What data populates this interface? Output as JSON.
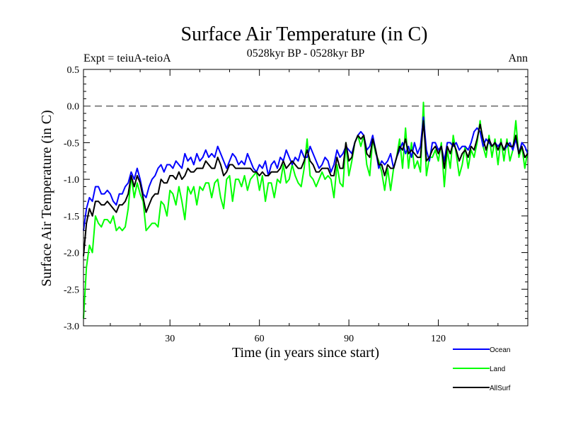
{
  "chart_data": {
    "type": "line",
    "title": "Surface Air Temperature (in C)",
    "subtitle": "0528kyr BP - 0528kyr BP",
    "left_label": "Expt = teiuA-teioA",
    "right_label": "Ann",
    "xlabel": "Time (in years since start)",
    "ylabel": "Surface Air Temperature (in C)",
    "xlim": [
      1,
      150
    ],
    "ylim": [
      -3.0,
      0.5
    ],
    "xticks": [
      30,
      60,
      90,
      120
    ],
    "yticks": [
      0.5,
      0.0,
      -0.5,
      -1.0,
      -1.5,
      -2.0,
      -2.5,
      -3.0
    ],
    "ytick_labels": [
      "0.5",
      "0.0",
      "-0.5",
      "-1.0",
      "-1.5",
      "-2.0",
      "-2.5",
      "-3.0"
    ],
    "reference_line": 0.0,
    "x": [
      1,
      2,
      3,
      4,
      5,
      6,
      7,
      8,
      9,
      10,
      11,
      12,
      13,
      14,
      15,
      16,
      17,
      18,
      19,
      20,
      21,
      22,
      23,
      24,
      25,
      26,
      27,
      28,
      29,
      30,
      31,
      32,
      33,
      34,
      35,
      36,
      37,
      38,
      39,
      40,
      41,
      42,
      43,
      44,
      45,
      46,
      47,
      48,
      49,
      50,
      51,
      52,
      53,
      54,
      55,
      56,
      57,
      58,
      59,
      60,
      61,
      62,
      63,
      64,
      65,
      66,
      67,
      68,
      69,
      70,
      71,
      72,
      73,
      74,
      75,
      76,
      77,
      78,
      79,
      80,
      81,
      82,
      83,
      84,
      85,
      86,
      87,
      88,
      89,
      90,
      91,
      92,
      93,
      94,
      95,
      96,
      97,
      98,
      99,
      100,
      101,
      102,
      103,
      104,
      105,
      106,
      107,
      108,
      109,
      110,
      111,
      112,
      113,
      114,
      115,
      116,
      117,
      118,
      119,
      120,
      121,
      122,
      123,
      124,
      125,
      126,
      127,
      128,
      129,
      130,
      131,
      132,
      133,
      134,
      135,
      136,
      137,
      138,
      139,
      140,
      141,
      142,
      143,
      144,
      145,
      146,
      147,
      148,
      149,
      150
    ],
    "series": [
      {
        "name": "Ocean",
        "color": "#0000ff",
        "values": [
          -1.7,
          -1.4,
          -1.25,
          -1.3,
          -1.1,
          -1.1,
          -1.2,
          -1.2,
          -1.15,
          -1.2,
          -1.3,
          -1.35,
          -1.2,
          -1.2,
          -1.1,
          -1.05,
          -0.9,
          -1.0,
          -0.85,
          -1.0,
          -1.2,
          -1.25,
          -1.1,
          -1.0,
          -0.95,
          -0.85,
          -0.8,
          -0.9,
          -0.8,
          -0.8,
          -0.85,
          -0.75,
          -0.8,
          -0.85,
          -0.65,
          -0.75,
          -0.7,
          -0.8,
          -0.65,
          -0.75,
          -0.7,
          -0.6,
          -0.7,
          -0.65,
          -0.7,
          -0.55,
          -0.65,
          -0.75,
          -0.85,
          -0.75,
          -0.65,
          -0.7,
          -0.8,
          -0.75,
          -0.8,
          -0.65,
          -0.75,
          -0.85,
          -0.9,
          -0.8,
          -0.85,
          -0.75,
          -0.95,
          -0.8,
          -0.75,
          -0.85,
          -0.7,
          -0.75,
          -0.6,
          -0.7,
          -0.8,
          -0.7,
          -0.75,
          -0.6,
          -0.7,
          -0.7,
          -0.55,
          -0.65,
          -0.75,
          -0.85,
          -0.8,
          -0.7,
          -0.75,
          -0.9,
          -0.8,
          -0.6,
          -0.7,
          -0.65,
          -0.55,
          -0.6,
          -0.65,
          -0.5,
          -0.4,
          -0.35,
          -0.4,
          -0.6,
          -0.55,
          -0.4,
          -0.6,
          -0.85,
          -0.75,
          -0.8,
          -0.75,
          -0.65,
          -0.85,
          -0.7,
          -0.6,
          -0.5,
          -0.65,
          -0.55,
          -0.7,
          -0.5,
          -0.65,
          -0.55,
          -0.15,
          -0.6,
          -0.75,
          -0.5,
          -0.5,
          -0.6,
          -0.55,
          -0.75,
          -0.5,
          -0.5,
          -0.55,
          -0.5,
          -0.6,
          -0.55,
          -0.55,
          -0.6,
          -0.5,
          -0.35,
          -0.3,
          -0.35,
          -0.55,
          -0.45,
          -0.5,
          -0.55,
          -0.5,
          -0.55,
          -0.5,
          -0.6,
          -0.55,
          -0.5,
          -0.6,
          -0.45,
          -0.65,
          -0.5,
          -0.55,
          -0.65
        ]
      },
      {
        "name": "Land",
        "color": "#00ff00",
        "values": [
          -2.9,
          -2.2,
          -1.9,
          -2.0,
          -1.5,
          -1.6,
          -1.65,
          -1.55,
          -1.55,
          -1.6,
          -1.5,
          -1.7,
          -1.65,
          -1.7,
          -1.65,
          -1.4,
          -0.95,
          -1.25,
          -1.05,
          -1.2,
          -1.3,
          -1.7,
          -1.65,
          -1.6,
          -1.6,
          -1.65,
          -1.3,
          -1.35,
          -1.5,
          -1.15,
          -1.2,
          -1.35,
          -1.1,
          -1.3,
          -1.55,
          -1.1,
          -1.2,
          -1.1,
          -1.35,
          -1.1,
          -1.15,
          -1.05,
          -1.05,
          -1.25,
          -1.05,
          -1.0,
          -1.25,
          -1.4,
          -1.0,
          -0.95,
          -1.3,
          -1.0,
          -1.0,
          -1.1,
          -0.95,
          -1.15,
          -1.0,
          -0.95,
          -0.9,
          -1.15,
          -0.95,
          -1.3,
          -1.05,
          -1.05,
          -1.25,
          -1.0,
          -1.05,
          -0.8,
          -1.05,
          -1.0,
          -0.8,
          -0.95,
          -1.05,
          -1.1,
          -0.85,
          -0.45,
          -0.95,
          -1.0,
          -1.1,
          -1.0,
          -0.9,
          -1.0,
          -0.95,
          -1.0,
          -1.25,
          -0.8,
          -1.05,
          -1.1,
          -0.5,
          -0.95,
          -0.75,
          -0.5,
          -0.4,
          -0.55,
          -0.4,
          -0.8,
          -0.95,
          -0.45,
          -0.65,
          -0.75,
          -0.9,
          -1.15,
          -0.85,
          -1.15,
          -0.85,
          -0.7,
          -0.45,
          -0.85,
          -0.3,
          -0.85,
          -0.5,
          -0.85,
          -0.75,
          -0.9,
          0.05,
          -0.95,
          -0.7,
          -0.7,
          -0.6,
          -0.75,
          -0.5,
          -1.1,
          -0.6,
          -0.85,
          -0.4,
          -0.65,
          -0.95,
          -0.8,
          -0.55,
          -0.85,
          -0.6,
          -0.7,
          -0.5,
          -0.2,
          -0.55,
          -0.7,
          -0.4,
          -0.7,
          -0.45,
          -0.8,
          -0.45,
          -0.75,
          -0.45,
          -0.75,
          -0.6,
          -0.2,
          -0.7,
          -0.55,
          -0.85,
          -0.6
        ]
      },
      {
        "name": "AllSurf",
        "color": "#000000",
        "values": [
          -2.05,
          -1.6,
          -1.4,
          -1.5,
          -1.3,
          -1.3,
          -1.35,
          -1.35,
          -1.3,
          -1.35,
          -1.4,
          -1.45,
          -1.35,
          -1.35,
          -1.3,
          -1.2,
          -0.95,
          -1.1,
          -0.95,
          -1.05,
          -1.25,
          -1.45,
          -1.35,
          -1.25,
          -1.2,
          -1.2,
          -1.0,
          -1.05,
          -1.05,
          -0.95,
          -0.95,
          -1.0,
          -0.9,
          -1.0,
          -0.95,
          -0.85,
          -0.9,
          -0.9,
          -0.85,
          -0.85,
          -0.85,
          -0.75,
          -0.8,
          -0.85,
          -0.85,
          -0.7,
          -0.8,
          -0.95,
          -0.9,
          -0.8,
          -0.8,
          -0.85,
          -0.85,
          -0.85,
          -0.85,
          -0.85,
          -0.85,
          -0.9,
          -0.9,
          -0.95,
          -0.9,
          -0.95,
          -0.95,
          -0.9,
          -0.9,
          -0.9,
          -0.85,
          -0.75,
          -0.85,
          -0.8,
          -0.75,
          -0.8,
          -0.85,
          -0.85,
          -0.75,
          -0.6,
          -0.75,
          -0.8,
          -0.9,
          -0.9,
          -0.85,
          -0.85,
          -0.85,
          -0.95,
          -0.95,
          -0.7,
          -0.85,
          -0.85,
          -0.5,
          -0.75,
          -0.7,
          -0.5,
          -0.4,
          -0.45,
          -0.4,
          -0.65,
          -0.7,
          -0.45,
          -0.6,
          -0.8,
          -0.8,
          -0.95,
          -0.8,
          -0.85,
          -0.85,
          -0.7,
          -0.55,
          -0.6,
          -0.45,
          -0.65,
          -0.6,
          -0.65,
          -0.7,
          -0.7,
          -0.2,
          -0.75,
          -0.7,
          -0.6,
          -0.55,
          -0.65,
          -0.55,
          -0.85,
          -0.55,
          -0.65,
          -0.5,
          -0.6,
          -0.75,
          -0.65,
          -0.6,
          -0.7,
          -0.55,
          -0.6,
          -0.45,
          -0.25,
          -0.45,
          -0.6,
          -0.45,
          -0.55,
          -0.5,
          -0.6,
          -0.5,
          -0.6,
          -0.5,
          -0.55,
          -0.55,
          -0.4,
          -0.65,
          -0.55,
          -0.7,
          -0.65
        ]
      }
    ],
    "legend_position": "bottom-right"
  }
}
